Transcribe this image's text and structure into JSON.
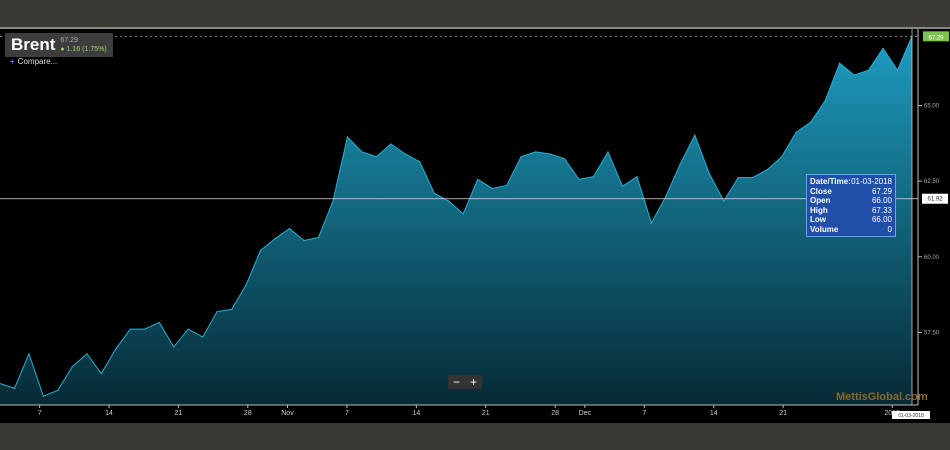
{
  "header": {
    "symbol": "Brent",
    "last": "67.29",
    "change": "1.16 (1.75%)"
  },
  "compare_label": "Compare...",
  "zoom": {
    "minus": "−",
    "plus": "+"
  },
  "watermark": "MettisGlobal.com",
  "tooltip": {
    "rows": [
      {
        "label": "Date/Time:",
        "value": "01-03-2018"
      },
      {
        "label": "Close",
        "value": "67.29"
      },
      {
        "label": "Open",
        "value": "66.00"
      },
      {
        "label": "High",
        "value": "67.33"
      },
      {
        "label": "Low",
        "value": "66.00"
      },
      {
        "label": "Volume",
        "value": "0"
      }
    ]
  },
  "chart_data": {
    "type": "area",
    "x_range": [
      "2017-10-03",
      "2018-01-03"
    ],
    "ylim": [
      55.1,
      67.4
    ],
    "y_ticks": [
      57.5,
      60.0,
      62.5,
      65.0
    ],
    "y_tick_labels": [
      "57.50",
      "60.00",
      "62.50",
      "65.00"
    ],
    "x_ticks": [
      {
        "date": "2017-10-07",
        "label": "7"
      },
      {
        "date": "2017-10-14",
        "label": "14"
      },
      {
        "date": "2017-10-21",
        "label": "21"
      },
      {
        "date": "2017-10-28",
        "label": "28"
      },
      {
        "date": "2017-11-01",
        "label": "Nov"
      },
      {
        "date": "2017-11-07",
        "label": "7"
      },
      {
        "date": "2017-11-14",
        "label": "14"
      },
      {
        "date": "2017-11-21",
        "label": "21"
      },
      {
        "date": "2017-11-28",
        "label": "28"
      },
      {
        "date": "2017-12-01",
        "label": "Dec"
      },
      {
        "date": "2017-12-07",
        "label": "7"
      },
      {
        "date": "2017-12-14",
        "label": "14"
      },
      {
        "date": "2017-12-21",
        "label": "21"
      },
      {
        "date": "2018-01-01",
        "label": "2018"
      }
    ],
    "values": [
      55.81,
      55.65,
      56.79,
      55.39,
      55.59,
      56.37,
      56.79,
      56.14,
      56.95,
      57.61,
      57.61,
      57.83,
      57.02,
      57.61,
      57.35,
      58.19,
      58.26,
      59.07,
      60.21,
      60.6,
      60.93,
      60.54,
      60.64,
      61.84,
      63.96,
      63.47,
      63.31,
      63.73,
      63.4,
      63.14,
      62.1,
      61.84,
      61.42,
      62.56,
      62.26,
      62.36,
      63.31,
      63.47,
      63.4,
      63.24,
      62.56,
      62.65,
      63.47,
      62.33,
      62.65,
      61.12,
      62.0,
      63.08,
      64.02,
      62.75,
      61.84,
      62.62,
      62.62,
      62.88,
      63.31,
      64.12,
      64.45,
      65.16,
      66.4,
      66.01,
      66.17,
      66.89,
      66.17,
      67.29
    ],
    "last_label": "67.29",
    "crosshair": {
      "value": 61.92,
      "label": "61.92",
      "date_label": "01-03-2018"
    },
    "grid": false,
    "colors": {
      "fill_top": "#1e9cc0",
      "fill_bottom": "#062a35",
      "line": "#2ab0d6",
      "last": "#7cc24f"
    }
  }
}
